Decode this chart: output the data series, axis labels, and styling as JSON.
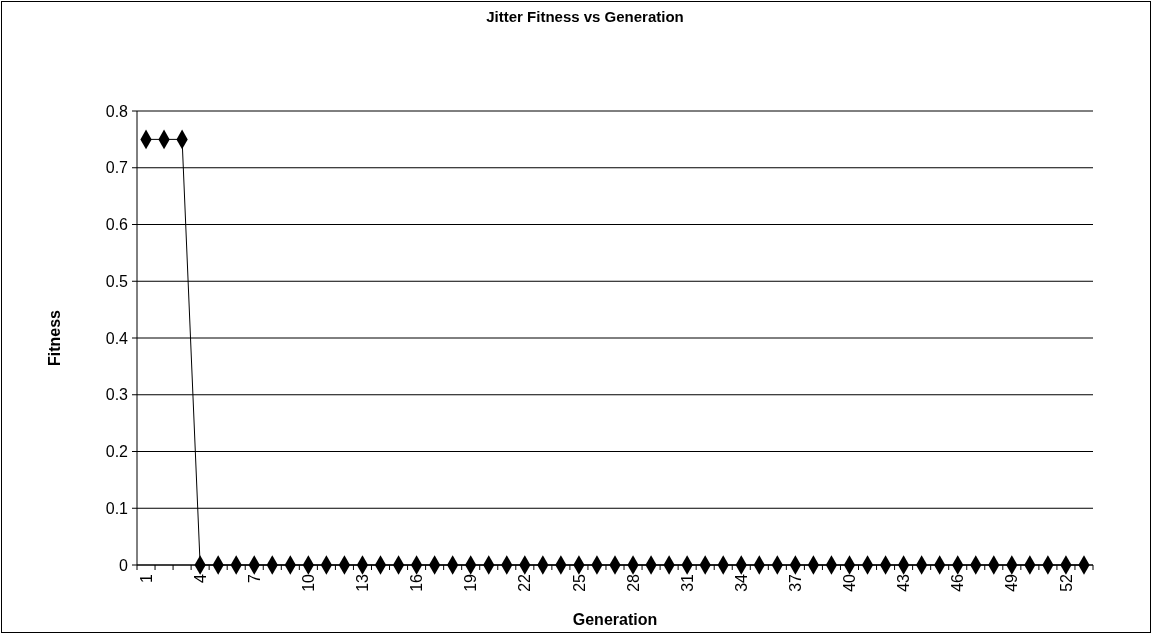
{
  "chart_data": {
    "type": "line",
    "title": "Jitter Fitness vs Generation",
    "xlabel": "Generation",
    "ylabel": "Fitness",
    "categories": [
      "1",
      null,
      null,
      "4",
      null,
      null,
      "7",
      null,
      null,
      "10",
      null,
      null,
      "13",
      null,
      null,
      "16",
      null,
      null,
      "19",
      null,
      null,
      "22",
      null,
      null,
      "25",
      null,
      null,
      "28",
      null,
      null,
      "31",
      null,
      null,
      "34",
      null,
      null,
      "37",
      null,
      null,
      "40",
      null,
      null,
      "43",
      null,
      null,
      "46",
      null,
      null,
      "49",
      null,
      null,
      "52",
      null
    ],
    "series": [
      {
        "color": "#000000",
        "values": [
          0.75,
          0.75,
          0.75,
          0,
          0,
          0,
          0,
          0,
          0,
          0,
          0,
          0,
          0,
          0,
          0,
          0,
          0,
          0,
          0,
          0,
          0,
          0,
          0,
          0,
          0,
          0,
          0,
          0,
          0,
          0,
          0,
          0,
          0,
          0,
          0,
          0,
          0,
          0,
          0,
          0,
          0,
          0,
          0,
          0,
          0,
          0,
          0,
          0,
          0,
          0,
          0,
          0,
          0
        ]
      }
    ],
    "ylim": [
      0,
      0.8
    ],
    "yticks": [
      0,
      0.1,
      0.2,
      0.3,
      0.4,
      0.5,
      0.6,
      0.7,
      0.8
    ],
    "grid": "y",
    "marker": "diamond",
    "line_style": "solid"
  }
}
